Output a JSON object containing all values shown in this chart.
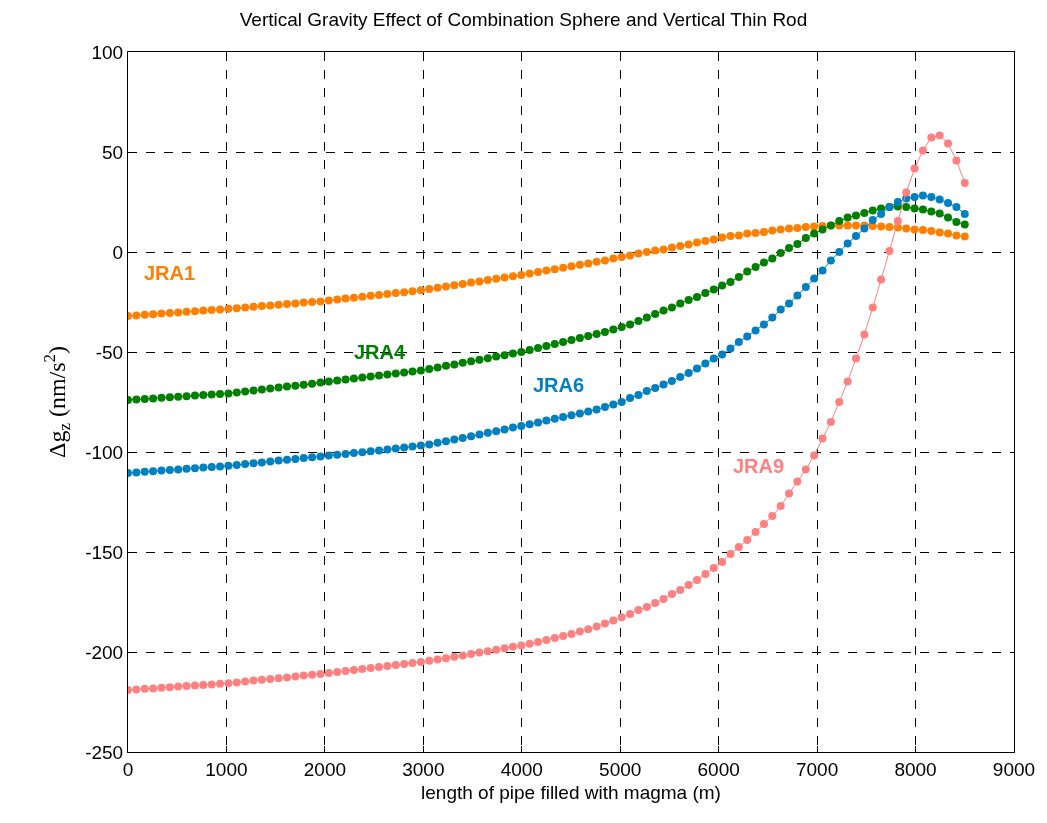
{
  "chart_data": {
    "type": "line",
    "title": "Vertical Gravity Effect of Combination Sphere and Vertical Thin Rod",
    "xlabel": "length of pipe filled with magma (m)",
    "ylabel": "Δg$_{z}$ (nm/s$^{2}$)",
    "x": [
      0,
      85,
      170,
      255,
      340,
      425,
      510,
      595,
      680,
      765,
      850,
      935,
      1020,
      1105,
      1190,
      1275,
      1360,
      1445,
      1530,
      1615,
      1700,
      1785,
      1870,
      1955,
      2040,
      2125,
      2210,
      2295,
      2380,
      2465,
      2550,
      2635,
      2720,
      2805,
      2890,
      2975,
      3060,
      3145,
      3230,
      3315,
      3400,
      3485,
      3570,
      3655,
      3740,
      3825,
      3910,
      3995,
      4080,
      4165,
      4250,
      4335,
      4420,
      4505,
      4590,
      4675,
      4760,
      4845,
      4930,
      5015,
      5100,
      5185,
      5270,
      5355,
      5440,
      5525,
      5610,
      5695,
      5780,
      5865,
      5950,
      6035,
      6120,
      6205,
      6290,
      6375,
      6460,
      6545,
      6630,
      6715,
      6800,
      6885,
      6970,
      7055,
      7140,
      7225,
      7310,
      7395,
      7480,
      7565,
      7650,
      7735,
      7820,
      7905,
      7990,
      8075,
      8160,
      8245,
      8330,
      8415,
      8500
    ],
    "series": [
      {
        "name": "JRA1",
        "color": "#ff8000",
        "values": [
          -32,
          -31.7,
          -31.4,
          -31.1,
          -30.8,
          -30.5,
          -30.2,
          -29.9,
          -29.6,
          -29.3,
          -29,
          -28.7,
          -28.4,
          -28.1,
          -27.7,
          -27.4,
          -27,
          -26.7,
          -26.4,
          -26,
          -25.7,
          -25.3,
          -25,
          -24.7,
          -24.3,
          -23.8,
          -23.3,
          -22.9,
          -22.4,
          -21.9,
          -21.5,
          -21,
          -20.5,
          -20.1,
          -19.6,
          -19.1,
          -18.5,
          -17.9,
          -17.3,
          -16.6,
          -16,
          -15.3,
          -14.7,
          -14,
          -13.4,
          -12.8,
          -12.1,
          -11.5,
          -10.8,
          -10,
          -9.3,
          -8.6,
          -7.9,
          -7.1,
          -6.4,
          -5.7,
          -4.9,
          -4.2,
          -3.3,
          -2.5,
          -1.7,
          -0.8,
          0,
          0.8,
          1.2,
          2.2,
          3,
          3.8,
          4.8,
          5.5,
          6.3,
          7.2,
          8,
          8.3,
          9.2,
          9.5,
          10,
          10.8,
          11.2,
          11.7,
          12,
          12.5,
          12.8,
          13,
          13.2,
          13.3,
          13.3,
          13.3,
          13.2,
          13,
          12.8,
          12.5,
          12.2,
          11.8,
          11.3,
          11,
          10.5,
          9.8,
          9.2,
          8.2,
          7.8
        ]
      },
      {
        "name": "JRA4",
        "color": "#008000",
        "values": [
          -74,
          -73.7,
          -73.5,
          -73.2,
          -72.9,
          -72.6,
          -72.4,
          -72.1,
          -71.8,
          -71.5,
          -71.3,
          -71,
          -70.7,
          -70.3,
          -69.8,
          -69.3,
          -68.8,
          -68.3,
          -67.8,
          -67.3,
          -66.9,
          -66.4,
          -65.9,
          -65.3,
          -64.8,
          -64.3,
          -63.8,
          -63.3,
          -62.8,
          -62.2,
          -61.7,
          -61.2,
          -60.7,
          -60.2,
          -59.7,
          -59.2,
          -58.5,
          -57.7,
          -56.9,
          -56.2,
          -55.4,
          -54.6,
          -53.9,
          -53.1,
          -52.3,
          -51.6,
          -50.8,
          -50,
          -49,
          -48,
          -47,
          -46,
          -45,
          -44,
          -43,
          -42,
          -41,
          -40,
          -38.8,
          -37.5,
          -36.2,
          -34.5,
          -32.8,
          -31,
          -29.3,
          -27.8,
          -25.8,
          -24,
          -22.5,
          -20.5,
          -18.8,
          -16.7,
          -15,
          -12.5,
          -9.8,
          -7.5,
          -5.3,
          -3.3,
          -0.5,
          2,
          4,
          7,
          9.2,
          11.2,
          13.3,
          15.5,
          17.2,
          18.3,
          19.5,
          20.8,
          21.7,
          22.5,
          22.8,
          22.5,
          21.7,
          21.2,
          20.3,
          19.2,
          17.2,
          15,
          13.8
        ]
      },
      {
        "name": "JRA6",
        "color": "#0080c0",
        "values": [
          -110.5,
          -110.2,
          -109.9,
          -109.6,
          -109.3,
          -109,
          -108.7,
          -108.4,
          -108.1,
          -107.8,
          -107.5,
          -107.2,
          -106.9,
          -106.5,
          -106,
          -105.6,
          -105.2,
          -104.7,
          -104.3,
          -103.9,
          -103.5,
          -103,
          -102.6,
          -102.2,
          -101.8,
          -101.4,
          -101,
          -100.5,
          -100.1,
          -99.6,
          -99.2,
          -98.7,
          -98.3,
          -97.8,
          -97.3,
          -96.8,
          -96.2,
          -95.4,
          -94.6,
          -93.8,
          -93,
          -92.1,
          -91.3,
          -90.4,
          -89.6,
          -88.7,
          -87.8,
          -87,
          -86.1,
          -85.2,
          -84.3,
          -83.4,
          -82.5,
          -81.6,
          -80.7,
          -79.8,
          -78.7,
          -77.5,
          -76.2,
          -75,
          -73,
          -71.5,
          -69.5,
          -68,
          -66.3,
          -64.5,
          -62.5,
          -60.5,
          -58.3,
          -55.8,
          -53.3,
          -51.2,
          -48.3,
          -45,
          -42.2,
          -39.2,
          -36.2,
          -32.8,
          -28.8,
          -25.8,
          -21.7,
          -17.5,
          -13.3,
          -9.2,
          -4.2,
          0,
          4.2,
          8,
          11.7,
          16,
          19,
          22.5,
          25,
          26.7,
          27.5,
          28.3,
          27.5,
          26.3,
          24.5,
          22.5,
          19
        ]
      },
      {
        "name": "JRA9",
        "color": "#ff8080",
        "values": [
          -219,
          -218.7,
          -218.4,
          -218.2,
          -217.9,
          -217.6,
          -217.3,
          -217,
          -216.7,
          -216.5,
          -216.2,
          -215.9,
          -215.6,
          -215.2,
          -214.8,
          -214.3,
          -213.9,
          -213.5,
          -213.1,
          -212.7,
          -212.3,
          -211.8,
          -211.4,
          -211,
          -210.5,
          -210,
          -209.5,
          -209,
          -208.5,
          -208,
          -207.5,
          -207,
          -206.5,
          -206,
          -205.5,
          -205,
          -204.4,
          -203.8,
          -203.1,
          -202.4,
          -201.7,
          -201,
          -200.3,
          -199.6,
          -198.9,
          -198.1,
          -197.4,
          -196.7,
          -195.9,
          -195,
          -194,
          -193,
          -192,
          -191,
          -189.8,
          -188.6,
          -187.3,
          -185.8,
          -184.3,
          -182.6,
          -181,
          -179,
          -177.5,
          -175.5,
          -173.5,
          -171,
          -169,
          -166.5,
          -164,
          -161,
          -158,
          -155,
          -151,
          -147.5,
          -144,
          -140,
          -136,
          -132,
          -127,
          -120.8,
          -114.7,
          -108.7,
          -101.7,
          -93.3,
          -85,
          -75,
          -64.7,
          -53.3,
          -41.2,
          -27.8,
          -13.7,
          0.5,
          15.5,
          29.7,
          41.7,
          50.8,
          57.2,
          58.3,
          54.2,
          45.8,
          34.5
        ]
      }
    ],
    "xlim": [
      0,
      9000
    ],
    "xticks": [
      0,
      1000,
      2000,
      3000,
      4000,
      5000,
      6000,
      7000,
      8000,
      9000
    ],
    "ylim": [
      -250,
      100
    ],
    "yticks": [
      -250,
      -200,
      -150,
      -100,
      -50,
      0,
      50,
      100
    ],
    "grid": true,
    "marker": "circle",
    "line_style": "solid"
  }
}
